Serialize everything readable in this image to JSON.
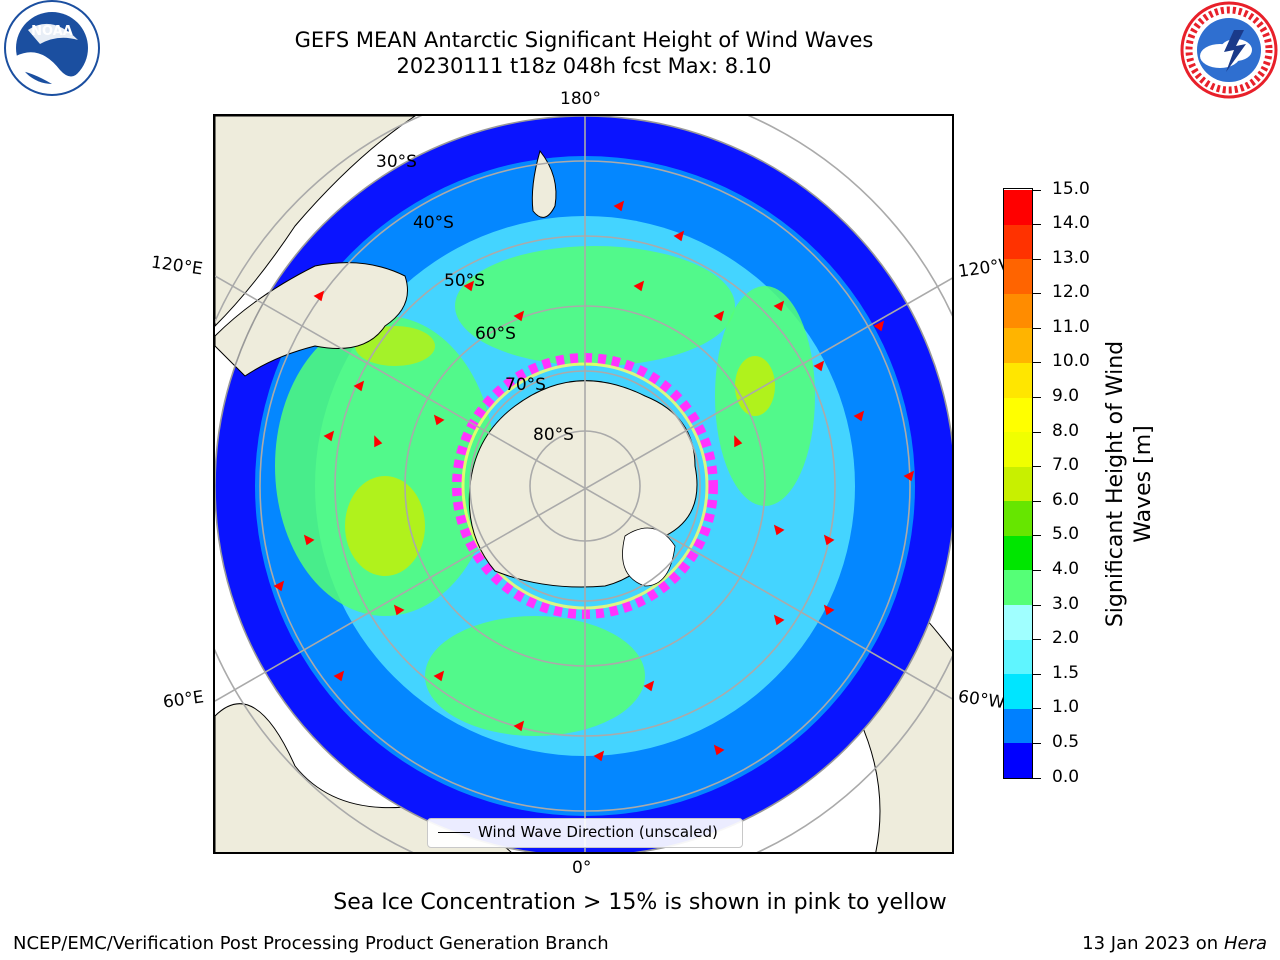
{
  "header": {
    "title_line1": "GEFS MEAN Antarctic Significant Height of Wind Waves",
    "title_line2": "20230111 t18z 048h fcst   Max: 8.10"
  },
  "logos": {
    "left": {
      "name": "NOAA",
      "ring_text": "NATIONAL OCEANIC AND ATMOSPHERIC ADMINISTRATION",
      "bottom_text": "U.S. DEPARTMENT OF COMMERCE",
      "color": "#1b4fa0"
    },
    "right": {
      "name": "NATIONAL WEATHER SERVICE",
      "color": "#e8202a"
    }
  },
  "map": {
    "projection": "south-polar-stereographic",
    "longitude_labels": [
      "180°",
      "120°E",
      "120°W",
      "60°E",
      "60°W",
      "0°"
    ],
    "latitude_labels": [
      "30°S",
      "40°S",
      "50°S",
      "60°S",
      "70°S",
      "80°S"
    ],
    "legend_label": "Wind Wave Direction (unscaled)",
    "land_color": "#eeecdc",
    "arrow_color": "#ff0000",
    "sea_ice_colors": [
      "#ff33ff",
      "#ffff00"
    ]
  },
  "colorbar": {
    "title": "Significant Height of Wind Waves [m]",
    "tick_labels": [
      "0.0",
      "0.5",
      "1.0",
      "1.5",
      "2.0",
      "3.0",
      "4.0",
      "5.0",
      "6.0",
      "7.0",
      "8.0",
      "9.0",
      "10.0",
      "11.0",
      "12.0",
      "13.0",
      "14.0",
      "15.0"
    ],
    "colors": [
      "#0000ff",
      "#0080ff",
      "#00e5ff",
      "#5ff5ff",
      "#a0ffff",
      "#55ff77",
      "#00e600",
      "#66e600",
      "#c8f000",
      "#f0ff00",
      "#ffff00",
      "#ffe600",
      "#ffb400",
      "#ff8c00",
      "#ff6400",
      "#ff3200",
      "#ff0000"
    ]
  },
  "notes": {
    "sea_ice": "Sea Ice Concentration > 15% is shown in pink to yellow",
    "credit": "NCEP/EMC/Verification Post Processing Product Generation Branch",
    "run_date": "13 Jan 2023 on",
    "machine": "Hera"
  }
}
